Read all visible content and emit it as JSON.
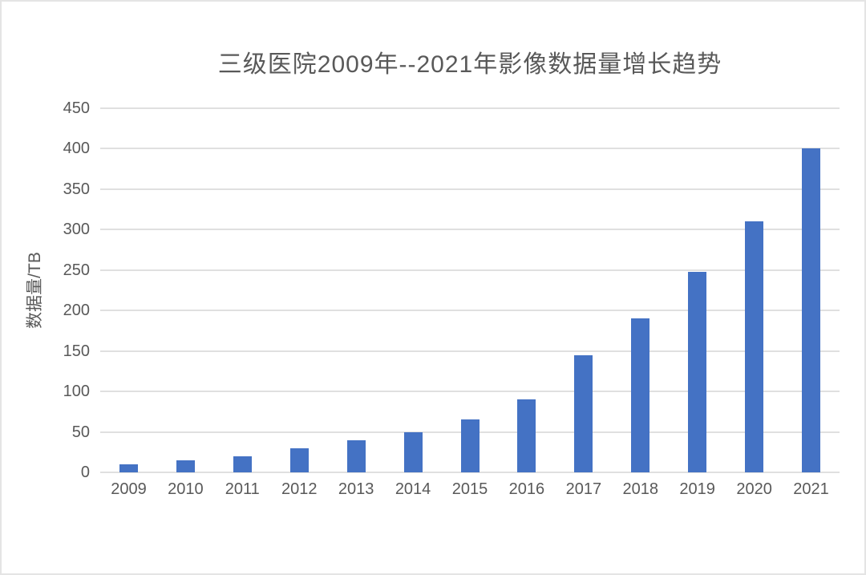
{
  "chart_data": {
    "type": "bar",
    "title": "三级医院2009年--2021年影像数据量增长趋势",
    "ylabel": "数据量/TB",
    "xlabel": "",
    "categories": [
      "2009",
      "2010",
      "2011",
      "2012",
      "2013",
      "2014",
      "2015",
      "2016",
      "2017",
      "2018",
      "2019",
      "2020",
      "2021"
    ],
    "values": [
      10,
      15,
      20,
      30,
      40,
      50,
      65,
      90,
      145,
      190,
      248,
      310,
      400
    ],
    "ylim": [
      0,
      450
    ],
    "ytick_step": 50,
    "grid": "horizontal-only",
    "legend": "none",
    "bar_color": "#4472C4",
    "gridline_color": "#e0e0e0",
    "text_color": "#595959",
    "background_color": "#ffffff"
  }
}
